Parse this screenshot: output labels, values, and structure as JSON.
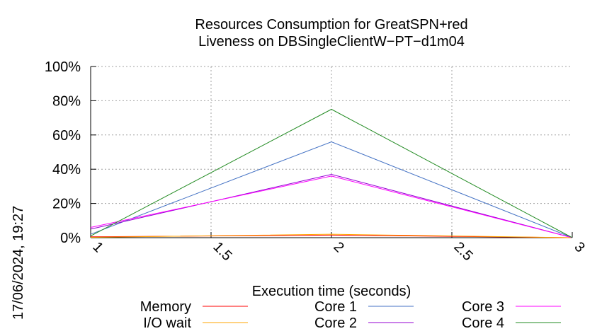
{
  "chart_data": {
    "type": "line",
    "title": [
      "Resources Consumption for GreatSPN+red",
      "Liveness on DBSingleClientW−PT−d1m04"
    ],
    "xlabel": "Execution time (seconds)",
    "ylabel": "",
    "xlim": [
      1,
      3
    ],
    "ylim": [
      0,
      100
    ],
    "xticks": [
      1,
      1.5,
      2,
      2.5,
      3
    ],
    "xtick_labels": [
      "1",
      "1.5",
      "2",
      "2.5",
      "3"
    ],
    "yticks": [
      0,
      20,
      40,
      60,
      80,
      100
    ],
    "ytick_labels": [
      "0%",
      "20%",
      "40%",
      "60%",
      "80%",
      "100%"
    ],
    "grid": true,
    "legend_position": "bottom",
    "x": [
      1,
      2,
      3
    ],
    "series": [
      {
        "name": "Memory",
        "color": "#ff0000",
        "values": [
          0.5,
          1.5,
          0
        ]
      },
      {
        "name": "I/O wait",
        "color": "#ffa500",
        "values": [
          0.2,
          2.0,
          0
        ]
      },
      {
        "name": "Core 1",
        "color": "#4472c4",
        "values": [
          2,
          56,
          0
        ]
      },
      {
        "name": "Core 2",
        "color": "#9400d3",
        "values": [
          5,
          37,
          0
        ]
      },
      {
        "name": "Core 3",
        "color": "#ff00ff",
        "values": [
          6,
          36,
          0
        ]
      },
      {
        "name": "Core 4",
        "color": "#228b22",
        "values": [
          1,
          75,
          0
        ]
      }
    ]
  },
  "timestamp": "17/06/2024, 19:27"
}
